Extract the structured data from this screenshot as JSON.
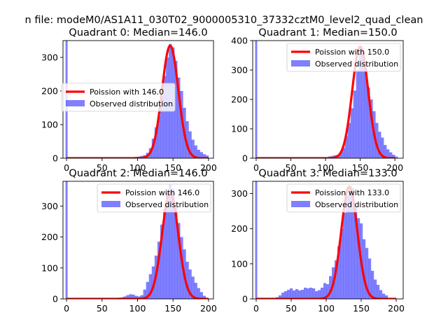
{
  "figure": {
    "suptitle": "n file: modeM0/AS1A11_030T02_9000005310_37332cztM0_level2_quad_clean"
  },
  "colors": {
    "hist": "#0000ff",
    "hist_alpha": 0.5,
    "poisson": "#ff0000",
    "axes": "#000000",
    "legend_edge": "#cccccc"
  },
  "chart_data": [
    {
      "type": "bar",
      "title": "Quadrant 0: Median=146.0",
      "xlabel": "",
      "ylabel": "",
      "xlim": [
        -5,
        207
      ],
      "ylim": [
        0,
        350
      ],
      "xticks": [
        0,
        50,
        100,
        150,
        200
      ],
      "yticks": [
        0,
        100,
        200,
        300
      ],
      "legend": {
        "placement": "center-left",
        "order": [
          "line",
          "hist"
        ]
      },
      "series": [
        {
          "name": "Poission with 146.0",
          "kind": "line",
          "mean": 146,
          "peak": 335,
          "sigma": 11.5
        },
        {
          "name": "Observed distribution",
          "kind": "hist",
          "bin_width": 4.2,
          "zero_bar": 350,
          "bins": [
            [
              75,
              1
            ],
            [
              80,
              1
            ],
            [
              84,
              2
            ],
            [
              88,
              2
            ],
            [
              92,
              3
            ],
            [
              96,
              4
            ],
            [
              100,
              5
            ],
            [
              104,
              7
            ],
            [
              108,
              9
            ],
            [
              112,
              16
            ],
            [
              116,
              30
            ],
            [
              120,
              58
            ],
            [
              124,
              92
            ],
            [
              128,
              125
            ],
            [
              132,
              185
            ],
            [
              136,
              245
            ],
            [
              140,
              300
            ],
            [
              144,
              340
            ],
            [
              148,
              330
            ],
            [
              152,
              290
            ],
            [
              156,
              240
            ],
            [
              160,
              200
            ],
            [
              164,
              150
            ],
            [
              168,
              110
            ],
            [
              172,
              80
            ],
            [
              176,
              55
            ],
            [
              180,
              38
            ],
            [
              184,
              25
            ],
            [
              188,
              18
            ],
            [
              192,
              12
            ],
            [
              196,
              8
            ]
          ]
        }
      ]
    },
    {
      "type": "bar",
      "title": "Quadrant 1: Median=150.0",
      "xlabel": "",
      "ylabel": "",
      "xlim": [
        -5,
        212
      ],
      "ylim": [
        0,
        400
      ],
      "xticks": [
        0,
        50,
        100,
        150,
        200
      ],
      "yticks": [
        0,
        100,
        200,
        300,
        400
      ],
      "legend": {
        "placement": "upper-right",
        "order": [
          "line",
          "hist"
        ]
      },
      "series": [
        {
          "name": "Poission with 150.0",
          "kind": "line",
          "mean": 150,
          "peak": 380,
          "sigma": 11.5
        },
        {
          "name": "Observed distribution",
          "kind": "hist",
          "bin_width": 4.2,
          "zero_bar": 400,
          "bins": [
            [
              80,
              1
            ],
            [
              84,
              1
            ],
            [
              88,
              2
            ],
            [
              92,
              2
            ],
            [
              96,
              3
            ],
            [
              100,
              4
            ],
            [
              104,
              6
            ],
            [
              108,
              8
            ],
            [
              112,
              10
            ],
            [
              116,
              12
            ],
            [
              120,
              20
            ],
            [
              124,
              35
            ],
            [
              128,
              75
            ],
            [
              132,
              120
            ],
            [
              136,
              170
            ],
            [
              140,
              230
            ],
            [
              144,
              300
            ],
            [
              148,
              370
            ],
            [
              152,
              360
            ],
            [
              156,
              300
            ],
            [
              160,
              240
            ],
            [
              164,
              200
            ],
            [
              168,
              160
            ],
            [
              172,
              120
            ],
            [
              176,
              90
            ],
            [
              180,
              70
            ],
            [
              184,
              45
            ],
            [
              188,
              30
            ],
            [
              192,
              20
            ],
            [
              196,
              12
            ],
            [
              200,
              6
            ]
          ]
        }
      ]
    },
    {
      "type": "bar",
      "title": "Quadrant 2: Median=146.0",
      "xlabel": "",
      "ylabel": "",
      "xlim": [
        -5,
        207
      ],
      "ylim": [
        0,
        380
      ],
      "xticks": [
        0,
        50,
        100,
        150,
        200
      ],
      "yticks": [
        0,
        100,
        200,
        300
      ],
      "legend": {
        "placement": "upper-right",
        "order": [
          "line",
          "hist"
        ]
      },
      "series": [
        {
          "name": "Poission with 146.0",
          "kind": "line",
          "mean": 146,
          "peak": 345,
          "sigma": 11.5
        },
        {
          "name": "Observed distribution",
          "kind": "hist",
          "bin_width": 4.2,
          "zero_bar": 380,
          "bins": [
            [
              60,
              2
            ],
            [
              64,
              2
            ],
            [
              68,
              3
            ],
            [
              72,
              4
            ],
            [
              76,
              5
            ],
            [
              80,
              8
            ],
            [
              84,
              12
            ],
            [
              88,
              15
            ],
            [
              92,
              14
            ],
            [
              96,
              10
            ],
            [
              100,
              8
            ],
            [
              104,
              12
            ],
            [
              108,
              30
            ],
            [
              112,
              55
            ],
            [
              116,
              80
            ],
            [
              120,
              105
            ],
            [
              124,
              140
            ],
            [
              128,
              185
            ],
            [
              132,
              240
            ],
            [
              136,
              290
            ],
            [
              140,
              345
            ],
            [
              144,
              370
            ],
            [
              148,
              355
            ],
            [
              152,
              300
            ],
            [
              156,
              245
            ],
            [
              160,
              200
            ],
            [
              164,
              160
            ],
            [
              168,
              120
            ],
            [
              172,
              95
            ],
            [
              176,
              72
            ],
            [
              180,
              52
            ],
            [
              184,
              35
            ],
            [
              188,
              22
            ],
            [
              192,
              10
            ]
          ]
        }
      ]
    },
    {
      "type": "bar",
      "title": "Quadrant 3: Median=133.0",
      "xlabel": "",
      "ylabel": "",
      "xlim": [
        -5,
        210
      ],
      "ylim": [
        0,
        335
      ],
      "xticks": [
        0,
        50,
        100,
        150,
        200
      ],
      "yticks": [
        0,
        100,
        200,
        300
      ],
      "legend": {
        "placement": "upper-right",
        "order": [
          "line",
          "hist"
        ]
      },
      "series": [
        {
          "name": "Poission with 133.0",
          "kind": "line",
          "mean": 133,
          "peak": 320,
          "sigma": 11.5
        },
        {
          "name": "Observed distribution",
          "kind": "hist",
          "bin_width": 4.2,
          "zero_bar": 335,
          "bins": [
            [
              28,
              5
            ],
            [
              32,
              10
            ],
            [
              36,
              18
            ],
            [
              40,
              22
            ],
            [
              44,
              26
            ],
            [
              48,
              30
            ],
            [
              52,
              24
            ],
            [
              56,
              28
            ],
            [
              60,
              24
            ],
            [
              64,
              26
            ],
            [
              68,
              32
            ],
            [
              72,
              30
            ],
            [
              76,
              32
            ],
            [
              80,
              30
            ],
            [
              84,
              22
            ],
            [
              88,
              25
            ],
            [
              92,
              32
            ],
            [
              96,
              45
            ],
            [
              100,
              42
            ],
            [
              104,
              65
            ],
            [
              108,
              90
            ],
            [
              112,
              110
            ],
            [
              116,
              150
            ],
            [
              120,
              200
            ],
            [
              124,
              245
            ],
            [
              128,
              295
            ],
            [
              132,
              320
            ],
            [
              136,
              315
            ],
            [
              140,
              265
            ],
            [
              144,
              230
            ],
            [
              148,
              215
            ],
            [
              152,
              170
            ],
            [
              156,
              145
            ],
            [
              160,
              115
            ],
            [
              164,
              80
            ],
            [
              168,
              55
            ],
            [
              172,
              40
            ],
            [
              176,
              25
            ],
            [
              180,
              15
            ],
            [
              184,
              10
            ]
          ]
        }
      ]
    }
  ]
}
